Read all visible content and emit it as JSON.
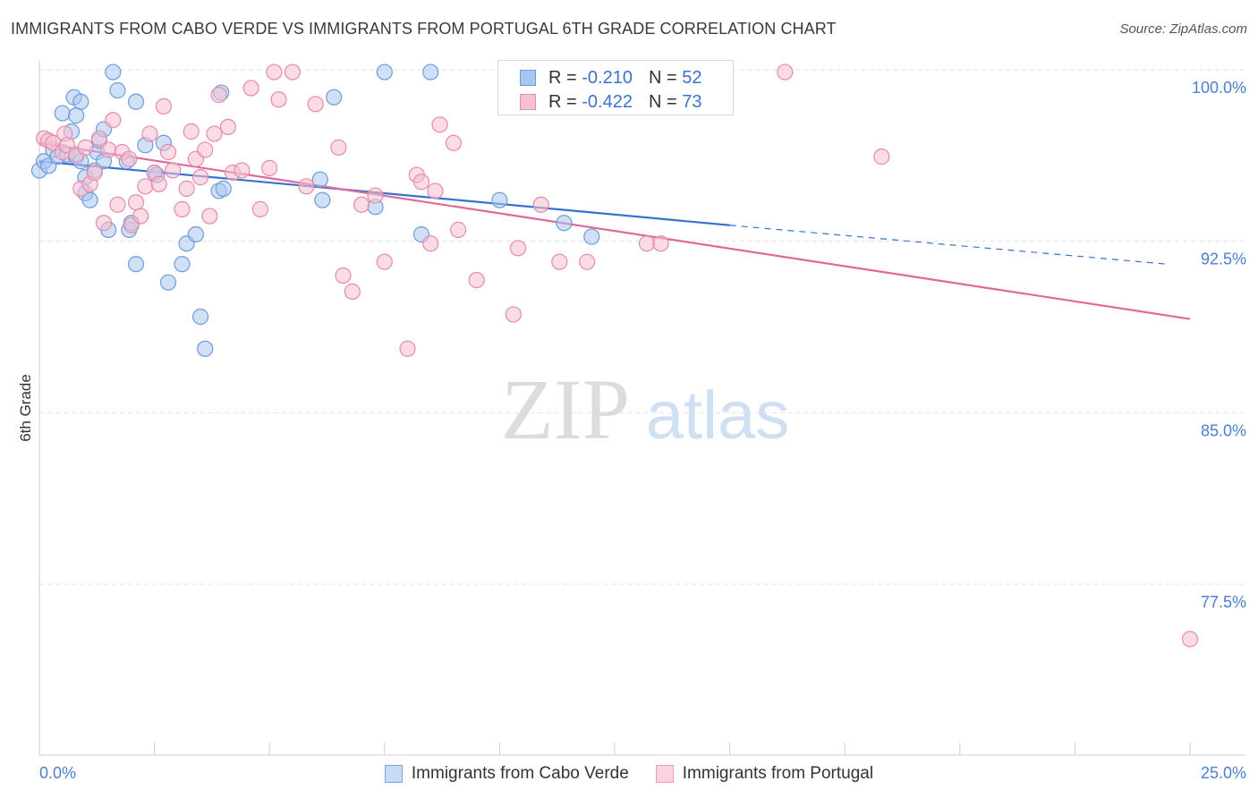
{
  "header": {
    "title": "IMMIGRANTS FROM CABO VERDE VS IMMIGRANTS FROM PORTUGAL 6TH GRADE CORRELATION CHART",
    "source": "Source: ZipAtlas.com"
  },
  "watermark": {
    "zip": "ZIP",
    "atlas": "atlas"
  },
  "legend": {
    "rows": [
      {
        "r_label": "R =",
        "r_value": "-0.210",
        "n_label": "N =",
        "n_value": "52",
        "color": "#a9c7ee",
        "border": "#6e9bd9"
      },
      {
        "r_label": "R =",
        "r_value": "-0.422",
        "n_label": "N =",
        "n_value": "73",
        "color": "#f7bfd1",
        "border": "#e68aab"
      }
    ]
  },
  "bottom_legend": {
    "items": [
      {
        "label": "Immigrants from Cabo Verde",
        "color": "#c7dbf5",
        "border": "#7aa3de"
      },
      {
        "label": "Immigrants from Portugal",
        "color": "#fad3e0",
        "border": "#eb9dba"
      }
    ]
  },
  "chart_data": {
    "type": "scatter",
    "ylabel": "6th Grade",
    "xlim": [
      0,
      25
    ],
    "ylim": [
      71.5,
      100.8
    ],
    "y_ticks": [
      {
        "value": 100.0,
        "label": "100.0%"
      },
      {
        "value": 92.5,
        "label": "92.5%"
      },
      {
        "value": 85.0,
        "label": "85.0%"
      },
      {
        "value": 77.5,
        "label": "77.5%"
      }
    ],
    "x_tick_labels": {
      "min": "0.0%",
      "max": "25.0%"
    },
    "x_minor_ticks": [
      0,
      2.5,
      5,
      7.5,
      10,
      12.5,
      15,
      17.5,
      20,
      22.5,
      25
    ],
    "grid": true,
    "series": [
      {
        "color": "#6e9bd9",
        "fill": "#a9c7ee",
        "trend": {
          "x0": 0,
          "y0": 96.0,
          "x1": 15.0,
          "y1": 93.2,
          "dash_to_x": 24.5,
          "dash_to_y": 91.5,
          "color": "#3573cc"
        },
        "points": [
          [
            0.0,
            95.6
          ],
          [
            0.1,
            96.0
          ],
          [
            0.2,
            95.8
          ],
          [
            0.3,
            96.5
          ],
          [
            0.4,
            96.2
          ],
          [
            0.5,
            98.1
          ],
          [
            0.6,
            96.3
          ],
          [
            0.7,
            97.3
          ],
          [
            0.8,
            98.0
          ],
          [
            0.8,
            96.2
          ],
          [
            0.9,
            96.0
          ],
          [
            1.0,
            95.3
          ],
          [
            0.75,
            98.8
          ],
          [
            0.9,
            98.6
          ],
          [
            1.0,
            94.6
          ],
          [
            1.1,
            94.3
          ],
          [
            1.2,
            95.6
          ],
          [
            1.25,
            96.4
          ],
          [
            1.3,
            96.9
          ],
          [
            1.4,
            96.0
          ],
          [
            1.4,
            97.4
          ],
          [
            1.5,
            93.0
          ],
          [
            1.6,
            99.9
          ],
          [
            1.7,
            99.1
          ],
          [
            1.9,
            96.0
          ],
          [
            1.95,
            93.0
          ],
          [
            2.0,
            93.3
          ],
          [
            2.1,
            91.5
          ],
          [
            2.1,
            98.6
          ],
          [
            2.3,
            96.7
          ],
          [
            2.5,
            95.5
          ],
          [
            2.55,
            95.4
          ],
          [
            2.8,
            90.7
          ],
          [
            3.1,
            91.5
          ],
          [
            3.2,
            92.4
          ],
          [
            3.4,
            92.8
          ],
          [
            3.5,
            89.2
          ],
          [
            3.6,
            87.8
          ],
          [
            3.9,
            94.7
          ],
          [
            3.95,
            99.0
          ],
          [
            4.0,
            94.8
          ],
          [
            6.1,
            95.2
          ],
          [
            6.15,
            94.3
          ],
          [
            6.4,
            98.8
          ],
          [
            7.3,
            94.0
          ],
          [
            7.5,
            99.9
          ],
          [
            8.3,
            92.8
          ],
          [
            8.5,
            99.9
          ],
          [
            10.0,
            94.3
          ],
          [
            11.4,
            93.3
          ],
          [
            12.0,
            92.7
          ],
          [
            2.7,
            96.8
          ]
        ]
      },
      {
        "color": "#e68aab",
        "fill": "#f7bfd1",
        "trend": {
          "x0": 0,
          "y0": 96.8,
          "x1": 25.0,
          "y1": 89.1,
          "color": "#e0689a"
        },
        "points": [
          [
            0.1,
            97.0
          ],
          [
            0.2,
            96.9
          ],
          [
            0.3,
            96.8
          ],
          [
            0.5,
            96.4
          ],
          [
            0.55,
            97.2
          ],
          [
            0.6,
            96.7
          ],
          [
            0.8,
            96.3
          ],
          [
            0.9,
            94.8
          ],
          [
            1.0,
            96.6
          ],
          [
            1.1,
            95.0
          ],
          [
            1.2,
            95.5
          ],
          [
            1.3,
            97.0
          ],
          [
            1.4,
            93.3
          ],
          [
            1.5,
            96.5
          ],
          [
            1.6,
            97.8
          ],
          [
            1.7,
            94.1
          ],
          [
            1.8,
            96.4
          ],
          [
            1.95,
            96.1
          ],
          [
            2.0,
            93.2
          ],
          [
            2.1,
            94.2
          ],
          [
            2.2,
            93.6
          ],
          [
            2.3,
            94.9
          ],
          [
            2.4,
            97.2
          ],
          [
            2.5,
            95.5
          ],
          [
            2.6,
            95.0
          ],
          [
            2.7,
            98.4
          ],
          [
            2.8,
            96.4
          ],
          [
            2.9,
            95.6
          ],
          [
            3.1,
            93.9
          ],
          [
            3.2,
            94.8
          ],
          [
            3.3,
            97.3
          ],
          [
            3.4,
            96.1
          ],
          [
            3.5,
            95.3
          ],
          [
            3.6,
            96.5
          ],
          [
            3.7,
            93.6
          ],
          [
            3.8,
            97.2
          ],
          [
            3.9,
            98.9
          ],
          [
            4.1,
            97.5
          ],
          [
            4.2,
            95.5
          ],
          [
            4.4,
            95.6
          ],
          [
            4.6,
            99.2
          ],
          [
            4.8,
            93.9
          ],
          [
            5.0,
            95.7
          ],
          [
            5.1,
            99.9
          ],
          [
            5.2,
            98.7
          ],
          [
            5.5,
            99.9
          ],
          [
            5.8,
            94.9
          ],
          [
            6.0,
            98.5
          ],
          [
            6.5,
            96.6
          ],
          [
            6.6,
            91.0
          ],
          [
            6.8,
            90.3
          ],
          [
            7.0,
            94.1
          ],
          [
            7.3,
            94.5
          ],
          [
            7.5,
            91.6
          ],
          [
            8.2,
            95.4
          ],
          [
            8.3,
            95.1
          ],
          [
            8.5,
            92.4
          ],
          [
            8.6,
            94.7
          ],
          [
            8.7,
            97.6
          ],
          [
            9.0,
            96.8
          ],
          [
            9.1,
            93.0
          ],
          [
            9.5,
            90.8
          ],
          [
            10.3,
            89.3
          ],
          [
            10.4,
            92.2
          ],
          [
            10.9,
            94.1
          ],
          [
            11.3,
            91.6
          ],
          [
            11.9,
            91.6
          ],
          [
            13.2,
            92.4
          ],
          [
            13.5,
            92.4
          ],
          [
            8.0,
            87.8
          ],
          [
            16.2,
            99.9
          ],
          [
            18.3,
            96.2
          ],
          [
            25.0,
            75.1
          ]
        ]
      }
    ]
  }
}
